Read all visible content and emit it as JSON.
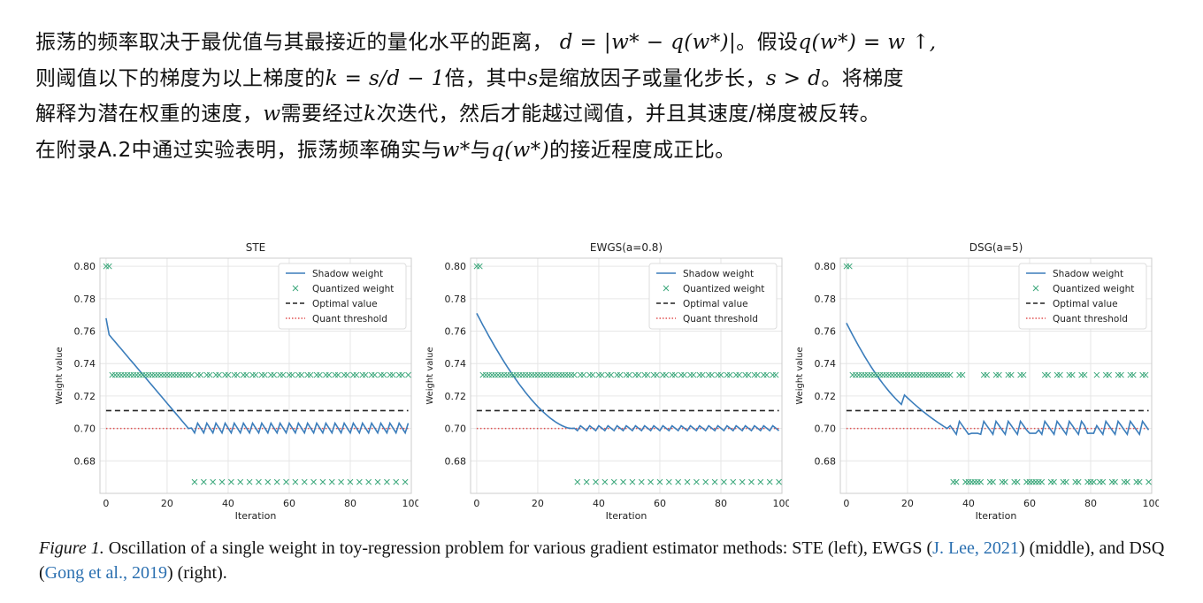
{
  "paragraph": {
    "line1_a": "振荡的频率取决于最优值与其最接近的量化水平的距离，",
    "line1_math1": "d = |w* − q(w*)|",
    "line1_b": "。假设",
    "line1_math2": "q(w*) = w ↑,",
    "line2_a": "则阈值以下的梯度为以上梯度的",
    "line2_math1": "k = s/d − 1",
    "line2_b": "倍，其中",
    "line2_math2": "s",
    "line2_c": "是缩放因子或量化步长，",
    "line2_math3": "s > d",
    "line2_d": "。将梯度",
    "line3_a": "解释为潜在权重的速度，",
    "line3_math1": "w",
    "line3_b": "需要经过",
    "line3_math2": "k",
    "line3_c": "次迭代，然后才能越过阈值，并且其速度/梯度被反转。",
    "line4_a": "在附录A.2中通过实验表明，振荡频率确实与",
    "line4_math1": "w*",
    "line4_b": "与",
    "line4_math2": "q(w*)",
    "line4_c": "的接近程度成正比。"
  },
  "caption": {
    "figure_label": "Figure 1.",
    "text_a": " Oscillation of a single weight in toy-regression problem for various gradient estimator methods: STE (left), EWGS (",
    "cite1": "J. Lee, 2021",
    "text_b": ") (middle), and DSQ (",
    "cite2": "Gong et al., 2019",
    "text_c": ") (right)."
  },
  "chart_data": [
    {
      "type": "line",
      "title": "STE",
      "xlabel": "Iteration",
      "ylabel": "Weight value",
      "xlim": [
        -2,
        100
      ],
      "ylim": [
        0.66,
        0.805
      ],
      "xticks": [
        "0",
        "20",
        "40",
        "60",
        "80",
        "100"
      ],
      "yticks": [
        "0.68",
        "0.70",
        "0.72",
        "0.74",
        "0.76",
        "0.78",
        "0.80"
      ],
      "grid": true,
      "legend_position": "top-right",
      "legend": [
        "Shadow weight",
        "Quantized weight",
        "Optimal value",
        "Quant threshold"
      ],
      "optimal_value": 0.711,
      "quant_threshold": 0.7,
      "quant_levels": [
        0.8,
        0.733,
        0.667
      ],
      "shadow_start": 0.768,
      "cross_iteration": 27,
      "oscillation_amplitude": 0.003,
      "oscillation_period": 3,
      "quantized_gaps": []
    },
    {
      "type": "line",
      "title": "EWGS(a=0.8)",
      "xlabel": "Iteration",
      "ylabel": "Weight value",
      "xlim": [
        -2,
        100
      ],
      "ylim": [
        0.66,
        0.805
      ],
      "xticks": [
        "0",
        "20",
        "40",
        "60",
        "80",
        "100"
      ],
      "yticks": [
        "0.68",
        "0.70",
        "0.72",
        "0.74",
        "0.76",
        "0.78",
        "0.80"
      ],
      "grid": true,
      "legend_position": "top-right",
      "legend": [
        "Shadow weight",
        "Quantized weight",
        "Optimal value",
        "Quant threshold"
      ],
      "optimal_value": 0.711,
      "quant_threshold": 0.7,
      "quant_levels": [
        0.8,
        0.733,
        0.667
      ],
      "shadow_start": 0.771,
      "cross_iteration": 31,
      "oscillation_amplitude": 0.0015,
      "oscillation_period": 3,
      "quantized_gaps": []
    },
    {
      "type": "line",
      "title": "DSG(a=5)",
      "xlabel": "Iteration",
      "ylabel": "Weight value",
      "xlim": [
        -2,
        100
      ],
      "ylim": [
        0.66,
        0.805
      ],
      "xticks": [
        "0",
        "20",
        "40",
        "60",
        "80",
        "100"
      ],
      "yticks": [
        "0.68",
        "0.70",
        "0.72",
        "0.74",
        "0.76",
        "0.78",
        "0.80"
      ],
      "grid": true,
      "legend_position": "top-right",
      "legend": [
        "Shadow weight",
        "Quantized weight",
        "Optimal value",
        "Quant threshold"
      ],
      "optimal_value": 0.711,
      "quant_threshold": 0.7,
      "quant_levels": [
        0.8,
        0.733,
        0.667
      ],
      "shadow_start": 0.765,
      "cross_iteration": 33,
      "oscillation_amplitude": 0.004,
      "oscillation_period": 4,
      "quantized_gaps": [
        42,
        61,
        80
      ]
    }
  ],
  "colors": {
    "shadow": "#3b7dbb",
    "quantized": "#3aa77a",
    "optimal": "#222222",
    "threshold": "#e05050",
    "grid": "#e6e6e6",
    "cite": "#2a6fb0"
  }
}
